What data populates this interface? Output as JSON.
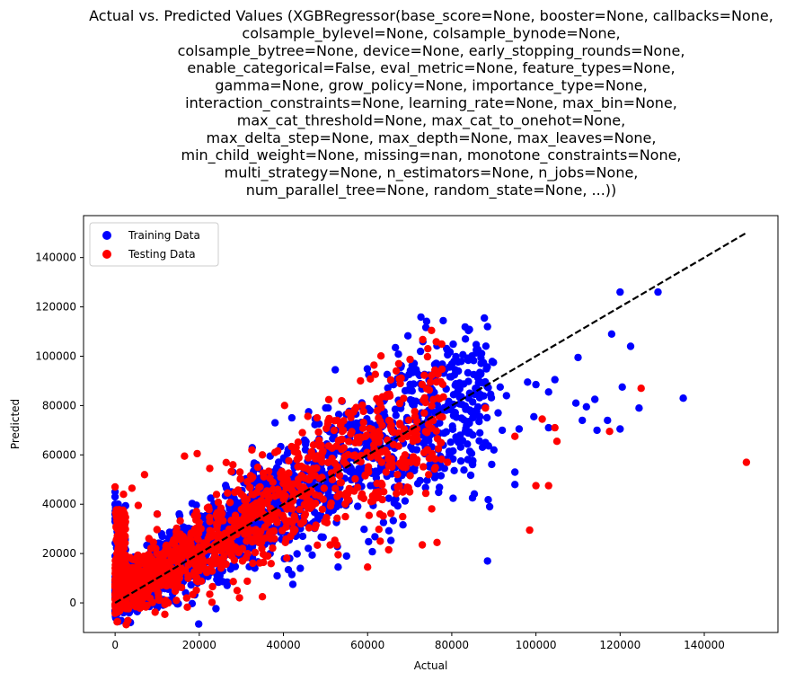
{
  "chart_data": {
    "type": "scatter",
    "title_lines": [
      "Actual vs. Predicted Values (XGBRegressor(base_score=None, booster=None, callbacks=None,",
      "colsample_bylevel=None, colsample_bynode=None,",
      "colsample_bytree=None, device=None, early_stopping_rounds=None,",
      "enable_categorical=False, eval_metric=None, feature_types=None,",
      "gamma=None, grow_policy=None, importance_type=None,",
      "interaction_constraints=None, learning_rate=None, max_bin=None,",
      "max_cat_threshold=None, max_cat_to_onehot=None,",
      "max_delta_step=None, max_depth=None, max_leaves=None,",
      "min_child_weight=None, missing=nan, monotone_constraints=None,",
      "multi_strategy=None, n_estimators=None, n_jobs=None,",
      "num_parallel_tree=None, random_state=None, ...))"
    ],
    "xlabel": "Actual",
    "ylabel": "Predicted",
    "xlim": [
      -7500,
      157500
    ],
    "ylim": [
      -12000,
      157000
    ],
    "xticks": [
      0,
      20000,
      40000,
      60000,
      80000,
      100000,
      120000,
      140000
    ],
    "yticks": [
      0,
      20000,
      40000,
      60000,
      80000,
      100000,
      120000,
      140000
    ],
    "grid": false,
    "legend_position": "top-left",
    "reference_line": {
      "x": [
        0,
        150000
      ],
      "y": [
        0,
        150000
      ],
      "color": "#000000",
      "style": "dashed"
    },
    "series": [
      {
        "name": "Training Data",
        "color": "#0000ff",
        "cloud": {
          "x_max": 90000,
          "spread_low": 0.55,
          "spread_high": 0.55,
          "count": 1800
        },
        "points": [
          [
            129000,
            126000
          ],
          [
            120000,
            126000
          ],
          [
            135000,
            83000
          ],
          [
            118000,
            109000
          ],
          [
            122500,
            104000
          ],
          [
            110000,
            99500
          ],
          [
            120500,
            87500
          ],
          [
            124500,
            79000
          ],
          [
            114000,
            82500
          ],
          [
            117000,
            74000
          ],
          [
            109500,
            81000
          ],
          [
            104500,
            90500
          ],
          [
            112000,
            79500
          ],
          [
            103000,
            85500
          ],
          [
            100000,
            88500
          ],
          [
            98000,
            89500
          ],
          [
            99500,
            75500
          ],
          [
            96000,
            70500
          ],
          [
            95000,
            53000
          ],
          [
            95000,
            48000
          ],
          [
            88500,
            17000
          ],
          [
            89000,
            39000
          ],
          [
            91500,
            87500
          ],
          [
            86000,
            86500
          ],
          [
            93000,
            84000
          ],
          [
            88000,
            79500
          ],
          [
            120000,
            70500
          ],
          [
            114500,
            70000
          ],
          [
            111000,
            74000
          ],
          [
            103000,
            71000
          ],
          [
            90000,
            62000
          ],
          [
            92000,
            70000
          ],
          [
            85000,
            75000
          ],
          [
            82000,
            68000
          ],
          [
            88000,
            65000
          ],
          [
            91000,
            77000
          ],
          [
            84000,
            83000
          ],
          [
            79000,
            80000
          ],
          [
            76000,
            77000
          ],
          [
            72000,
            74500
          ],
          [
            66000,
            73000
          ],
          [
            62000,
            72000
          ],
          [
            55000,
            71000
          ],
          [
            52000,
            68000
          ],
          [
            48000,
            65000
          ],
          [
            45000,
            66000
          ],
          [
            46000,
            77500
          ],
          [
            42000,
            75000
          ],
          [
            38000,
            73000
          ],
          [
            28000,
            53000
          ],
          [
            33000,
            56000
          ],
          [
            0,
            45000
          ],
          [
            0,
            43000
          ],
          [
            0,
            40000
          ],
          [
            500,
            38000
          ],
          [
            0,
            36000
          ],
          [
            1000,
            35000
          ],
          [
            0,
            33000
          ],
          [
            10000,
            36000
          ],
          [
            0,
            -3500
          ],
          [
            2000,
            -4000
          ],
          [
            5000,
            -3000
          ],
          [
            8000,
            1500
          ],
          [
            10000,
            -2000
          ],
          [
            14000,
            800
          ],
          [
            38500,
            11000
          ],
          [
            42000,
            11500
          ],
          [
            44000,
            14000
          ],
          [
            53000,
            14500
          ],
          [
            55000,
            19000
          ]
        ]
      },
      {
        "name": "Testing Data",
        "color": "#ff0000",
        "cloud": {
          "x_max": 78000,
          "spread_low": 0.48,
          "spread_high": 0.48,
          "count": 1200
        },
        "points": [
          [
            150000,
            57000
          ],
          [
            125000,
            87000
          ],
          [
            117500,
            69500
          ],
          [
            105000,
            65500
          ],
          [
            98500,
            29500
          ],
          [
            103000,
            47500
          ],
          [
            100000,
            47500
          ],
          [
            95000,
            67500
          ],
          [
            104500,
            71000
          ],
          [
            101500,
            74500
          ],
          [
            88000,
            79000
          ],
          [
            78000,
            83500
          ],
          [
            64500,
            83500
          ],
          [
            56000,
            68500
          ],
          [
            48000,
            75000
          ],
          [
            32500,
            62000
          ],
          [
            35000,
            60000
          ],
          [
            19500,
            60500
          ],
          [
            16500,
            59500
          ],
          [
            22500,
            54500
          ],
          [
            28000,
            56000
          ],
          [
            7000,
            52000
          ],
          [
            4000,
            46500
          ],
          [
            0,
            47000
          ],
          [
            2000,
            44000
          ],
          [
            5500,
            39500
          ],
          [
            10000,
            36000
          ],
          [
            65000,
            21500
          ],
          [
            63000,
            25000
          ],
          [
            60000,
            14500
          ],
          [
            53000,
            19500
          ],
          [
            73000,
            23500
          ],
          [
            76500,
            24500
          ],
          [
            70000,
            45000
          ],
          [
            74500,
            52000
          ],
          [
            79000,
            57000
          ],
          [
            68500,
            55000
          ],
          [
            58000,
            67000
          ],
          [
            49000,
            59000
          ],
          [
            43000,
            63000
          ],
          [
            44500,
            69000
          ],
          [
            38000,
            61000
          ],
          [
            30000,
            44000
          ],
          [
            33000,
            37000
          ],
          [
            35000,
            2500
          ],
          [
            29000,
            5000
          ],
          [
            22500,
            3500
          ],
          [
            17000,
            2000
          ],
          [
            12000,
            1000
          ],
          [
            6000,
            -1000
          ],
          [
            3000,
            -1500
          ],
          [
            1500,
            2000
          ]
        ]
      }
    ]
  }
}
